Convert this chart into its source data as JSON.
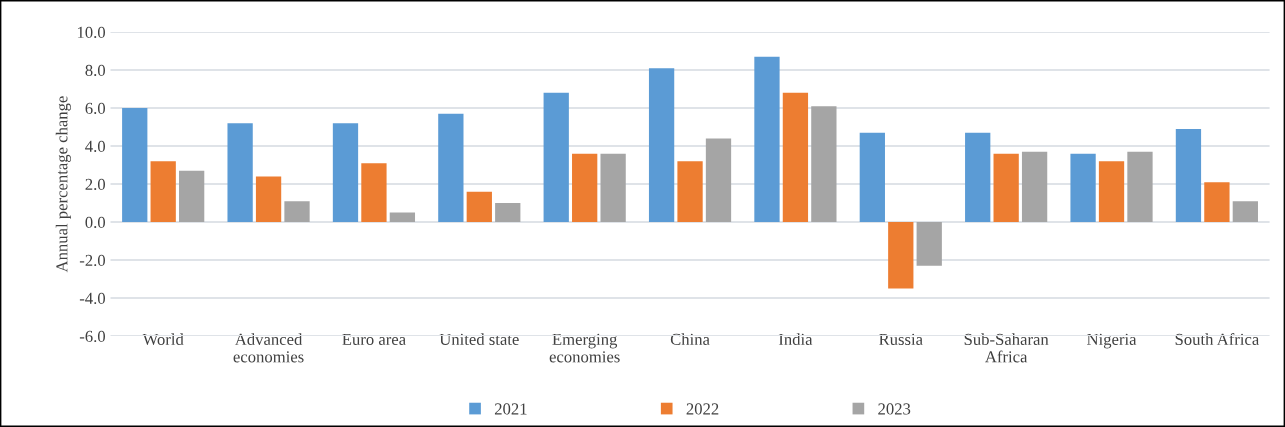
{
  "chart_data": {
    "type": "bar",
    "ylabel": "Annual percentage change",
    "categories": [
      "World",
      "Advanced\neconomies",
      "Euro area",
      "United state",
      "Emerging\neconomies",
      "China",
      "India",
      "Russia",
      "Sub-Saharan\nAfrica",
      "Nigeria",
      "South Africa"
    ],
    "series": [
      {
        "name": "2021",
        "color": "#5b9bd5",
        "values": [
          6.0,
          5.2,
          5.2,
          5.7,
          6.8,
          8.1,
          8.7,
          4.7,
          4.7,
          3.6,
          4.9
        ]
      },
      {
        "name": "2022",
        "color": "#ed7d31",
        "values": [
          3.2,
          2.4,
          3.1,
          1.6,
          3.6,
          3.2,
          6.8,
          -3.5,
          3.6,
          3.2,
          2.1
        ]
      },
      {
        "name": "2023",
        "color": "#a5a5a5",
        "values": [
          2.7,
          1.1,
          0.5,
          1.0,
          3.6,
          4.4,
          6.1,
          -2.3,
          3.7,
          3.7,
          1.1
        ]
      }
    ],
    "ylim": [
      -6,
      10
    ],
    "yticks": [
      {
        "value": -6,
        "label": "-6.0"
      },
      {
        "value": -4,
        "label": "-4.0"
      },
      {
        "value": -2,
        "label": "-2.0"
      },
      {
        "value": 0,
        "label": "0.0"
      },
      {
        "value": 2,
        "label": "2.0"
      },
      {
        "value": 4,
        "label": "4.0"
      },
      {
        "value": 6,
        "label": "6.0"
      },
      {
        "value": 8,
        "label": "8.0"
      },
      {
        "value": 10,
        "label": "10.0"
      }
    ],
    "grid": "y",
    "legend": "bottom"
  }
}
